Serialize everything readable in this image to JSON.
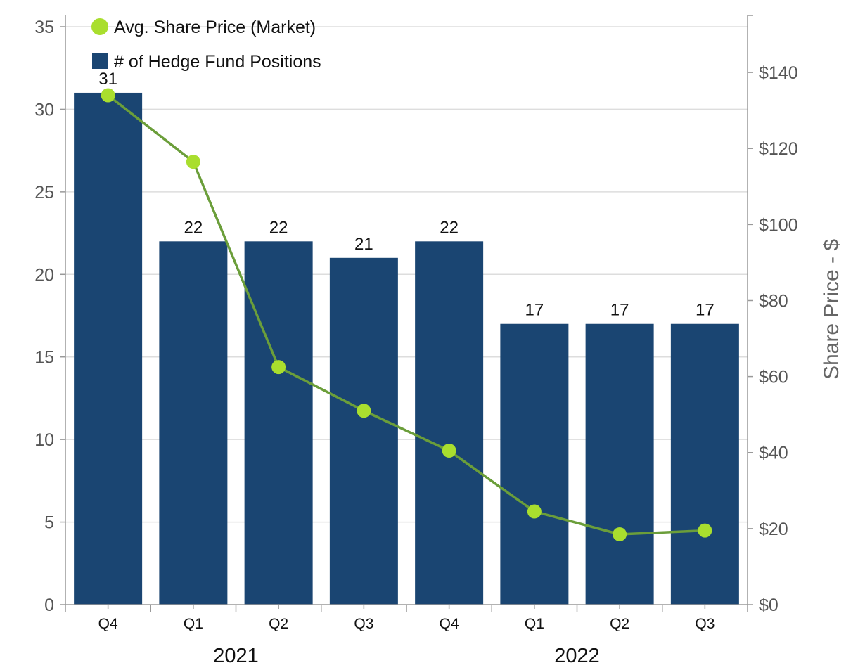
{
  "chart_data": {
    "type": "bar",
    "title": "",
    "categories": [
      "Q4",
      "Q1",
      "Q2",
      "Q3",
      "Q4",
      "Q1",
      "Q2",
      "Q3"
    ],
    "year_groups": [
      {
        "label": "2021",
        "categories_span": [
          0,
          3
        ]
      },
      {
        "label": "2022",
        "categories_span": [
          4,
          7
        ]
      }
    ],
    "series": [
      {
        "name": "# of Hedge Fund Positions",
        "type": "bar",
        "axis": "left",
        "color": "#1a4572",
        "values": [
          31,
          22,
          22,
          21,
          22,
          17,
          17,
          17
        ],
        "labels": [
          "31",
          "22",
          "22",
          "21",
          "22",
          "17",
          "17",
          "17"
        ]
      },
      {
        "name": "Avg. Share Price (Market)",
        "type": "line",
        "axis": "right",
        "line_color": "#6b9e3a",
        "marker_color": "#a9de2e",
        "values": [
          134,
          116.5,
          62.5,
          51,
          40.5,
          24.5,
          18.5,
          19.5
        ]
      }
    ],
    "y_left": {
      "ylim": [
        0,
        35
      ],
      "ticks": [
        0,
        5,
        10,
        15,
        20,
        25,
        30,
        35
      ],
      "tick_labels": [
        "0",
        "5",
        "10",
        "15",
        "20",
        "25",
        "30",
        "35"
      ]
    },
    "y_right": {
      "ylim": [
        0,
        155
      ],
      "ticks": [
        0,
        20,
        40,
        60,
        80,
        100,
        120,
        140
      ],
      "tick_labels": [
        "$0",
        "$20",
        "$40",
        "$60",
        "$80",
        "$100",
        "$120",
        "$140"
      ],
      "label": "Share Price - $"
    },
    "legend": {
      "position": "top-left",
      "entries": [
        "Avg. Share Price (Market)",
        "# of Hedge Fund Positions"
      ]
    },
    "grid": true
  }
}
